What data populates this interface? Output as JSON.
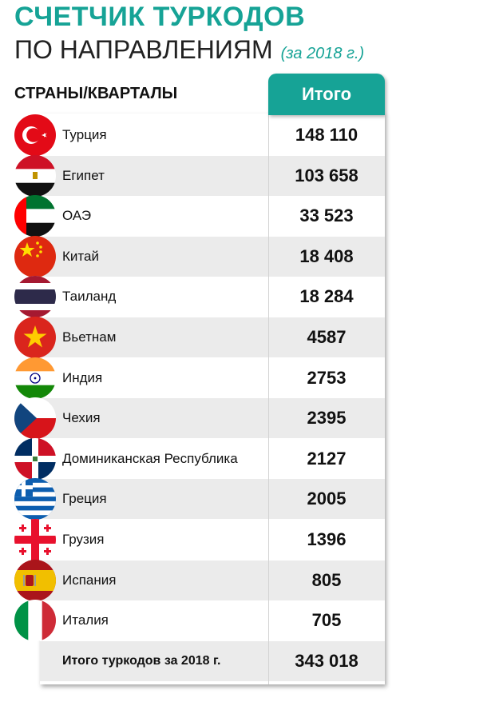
{
  "header": {
    "title_line1": "СЧЕТЧИК ТУРКОДОВ",
    "title_line2": "ПО НАПРАВЛЕНИЯМ",
    "subtitle": "(за 2018 г.)",
    "column_label": "СТРАНЫ/КВАРТАЛЫ",
    "total_header": "Итого"
  },
  "colors": {
    "accent": "#16a396",
    "row_alt": "#ebebeb"
  },
  "chart_data": {
    "type": "table",
    "columns": [
      "СТРАНЫ/КВАРТАЛЫ",
      "Итого"
    ],
    "rows": [
      {
        "country": "Турция",
        "flag_icon": "turkey-flag-icon",
        "value": "148 110"
      },
      {
        "country": "Египет",
        "flag_icon": "egypt-flag-icon",
        "value": "103 658"
      },
      {
        "country": "ОАЭ",
        "flag_icon": "uae-flag-icon",
        "value": "33 523"
      },
      {
        "country": "Китай",
        "flag_icon": "china-flag-icon",
        "value": "18 408"
      },
      {
        "country": "Таиланд",
        "flag_icon": "thailand-flag-icon",
        "value": "18 284"
      },
      {
        "country": "Вьетнам",
        "flag_icon": "vietnam-flag-icon",
        "value": "4587"
      },
      {
        "country": "Индия",
        "flag_icon": "india-flag-icon",
        "value": "2753"
      },
      {
        "country": "Чехия",
        "flag_icon": "czechia-flag-icon",
        "value": "2395"
      },
      {
        "country": "Доминиканская Республика",
        "flag_icon": "dominican-republic-flag-icon",
        "value": "2127"
      },
      {
        "country": "Греция",
        "flag_icon": "greece-flag-icon",
        "value": "2005"
      },
      {
        "country": "Грузия",
        "flag_icon": "georgia-flag-icon",
        "value": "1396"
      },
      {
        "country": "Испания",
        "flag_icon": "spain-flag-icon",
        "value": "805"
      },
      {
        "country": "Италия",
        "flag_icon": "italy-flag-icon",
        "value": "705"
      }
    ],
    "total": {
      "label": "Итого туркодов за 2018 г.",
      "value": "343 018"
    }
  }
}
